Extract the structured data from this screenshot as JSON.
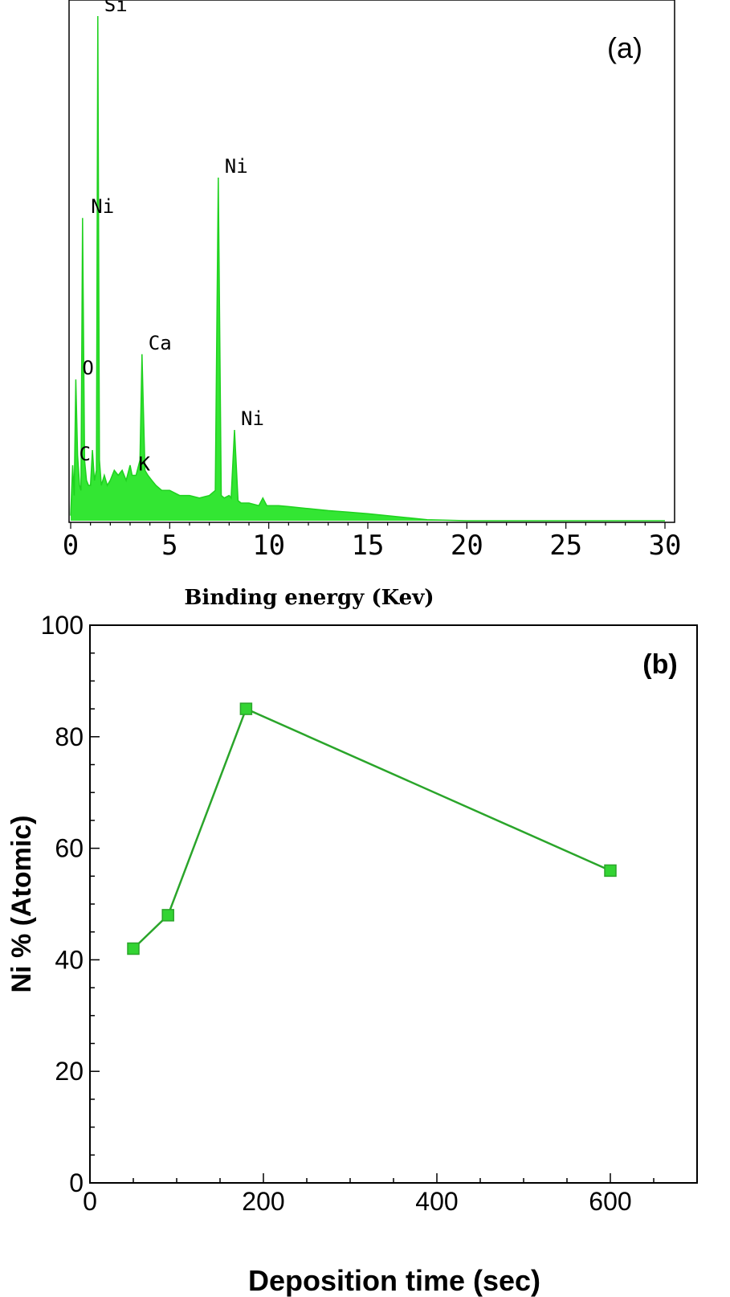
{
  "chart_data": [
    {
      "id": "a",
      "type": "line",
      "panel_label": "(a)",
      "xlabel": "Binding energy (Kev)",
      "ylabel": "",
      "xlim": [
        0,
        30
      ],
      "x_ticks": [
        0,
        5,
        10,
        15,
        20,
        25,
        30
      ],
      "grid": false,
      "color": "#33e633",
      "spectrum": {
        "x": [
          0.0,
          0.1,
          0.18,
          0.26,
          0.35,
          0.45,
          0.52,
          0.6,
          0.7,
          0.8,
          0.9,
          1.0,
          1.1,
          1.2,
          1.3,
          1.37,
          1.45,
          1.55,
          1.7,
          1.85,
          2.0,
          2.2,
          2.4,
          2.6,
          2.8,
          3.0,
          3.1,
          3.3,
          3.5,
          3.6,
          3.75,
          3.9,
          4.1,
          4.3,
          4.6,
          5.0,
          5.5,
          6.0,
          6.5,
          7.0,
          7.3,
          7.45,
          7.6,
          7.75,
          8.0,
          8.1,
          8.27,
          8.45,
          8.6,
          9.0,
          9.5,
          9.7,
          9.9,
          10.5,
          11.0,
          12.0,
          13.0,
          14.0,
          15.0,
          16.0,
          17.0,
          18.0,
          20.0,
          25.0,
          30.0
        ],
        "y": [
          1,
          11,
          5,
          28,
          13,
          7,
          6,
          60,
          12,
          8,
          7,
          7,
          14,
          8,
          10,
          100,
          12,
          7,
          9,
          7,
          8,
          10,
          9,
          10,
          8,
          11,
          9,
          9,
          12,
          33,
          10,
          9,
          8,
          7,
          6,
          6,
          5,
          5,
          4.5,
          5,
          6,
          68,
          5,
          4.5,
          5,
          4.5,
          18,
          4,
          3.5,
          3.5,
          3,
          4.5,
          3,
          3,
          2.8,
          2.4,
          2,
          1.7,
          1.4,
          1,
          0.6,
          0.2,
          0,
          0,
          0
        ]
      },
      "peak_labels": [
        {
          "text": "Si",
          "x": 1.37,
          "y": 100
        },
        {
          "text": "Ni",
          "x": 0.7,
          "y": 60
        },
        {
          "text": "Ni",
          "x": 7.45,
          "y": 68
        },
        {
          "text": "Ca",
          "x": 3.6,
          "y": 33
        },
        {
          "text": "O",
          "x": 0.26,
          "y": 28
        },
        {
          "text": "K",
          "x": 3.1,
          "y": 9
        },
        {
          "text": "C",
          "x": 0.1,
          "y": 11
        },
        {
          "text": "Ni",
          "x": 8.27,
          "y": 18
        }
      ]
    },
    {
      "id": "b",
      "type": "line",
      "panel_label": "(b)",
      "xlabel": "Deposition time (sec)",
      "ylabel": "Ni % (Atomic)",
      "xlim": [
        0,
        700
      ],
      "ylim": [
        0,
        100
      ],
      "x_ticks": [
        0,
        200,
        400,
        600
      ],
      "y_ticks": [
        0,
        20,
        40,
        60,
        80,
        100
      ],
      "grid": false,
      "color": "#2aa52a",
      "marker_color": "#33d433",
      "series": [
        {
          "x": [
            50,
            90,
            180,
            600
          ],
          "y": [
            42,
            48,
            85,
            56
          ]
        }
      ]
    }
  ]
}
